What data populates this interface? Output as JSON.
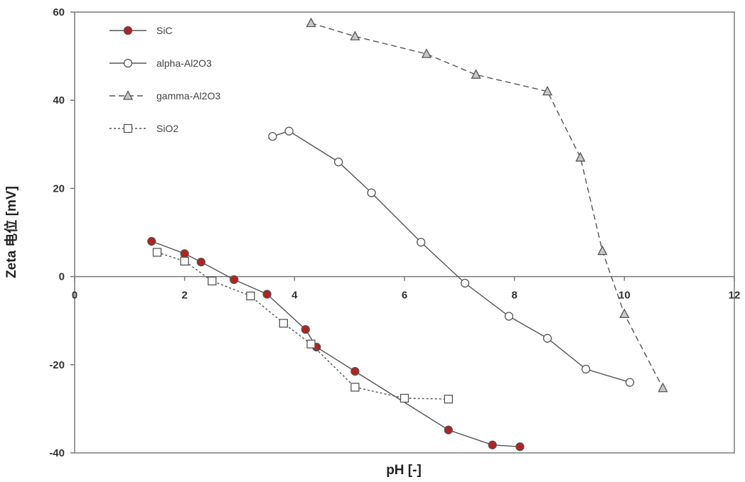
{
  "chart_data": {
    "type": "scatter",
    "title": "",
    "xlabel": "pH [-]",
    "ylabel": "Zeta 电位 [mV]",
    "xlim": [
      0,
      12
    ],
    "ylim": [
      -40,
      60
    ],
    "xticks": [
      0,
      2,
      4,
      6,
      8,
      10,
      12
    ],
    "yticks": [
      -40,
      -20,
      0,
      20,
      40,
      60
    ],
    "grid": false,
    "legend_position": "top-left",
    "series": [
      {
        "name": "SiC",
        "line_style": "solid",
        "marker": "circle",
        "marker_fill": "#b22222",
        "color": "#555555",
        "x": [
          1.4,
          2.0,
          2.3,
          2.9,
          3.5,
          4.2,
          4.4,
          5.1,
          6.8,
          7.6,
          8.1
        ],
        "y": [
          8,
          5.2,
          3.3,
          -0.7,
          -4,
          -12,
          -16,
          -21.5,
          -34.8,
          -38.2,
          -38.6
        ]
      },
      {
        "name": "alpha-Al2O3",
        "line_style": "solid",
        "marker": "circle",
        "marker_fill": "#ffffff",
        "color": "#555555",
        "x": [
          3.6,
          3.9,
          4.8,
          5.4,
          6.3,
          7.1,
          7.9,
          8.6,
          9.3,
          10.1
        ],
        "y": [
          31.8,
          33,
          26,
          19,
          7.8,
          -1.5,
          -9,
          -14,
          -21,
          -24
        ]
      },
      {
        "name": "gamma-Al2O3",
        "line_style": "dashed",
        "marker": "triangle",
        "marker_fill": "#c8c8c8",
        "color": "#555555",
        "x": [
          4.3,
          5.1,
          6.4,
          7.3,
          8.6,
          9.2,
          9.6,
          10.0,
          10.7
        ],
        "y": [
          57.5,
          54.5,
          50.5,
          45.8,
          42,
          27,
          5.8,
          -8.5,
          -25.3
        ]
      },
      {
        "name": "SiO2",
        "line_style": "dotted",
        "marker": "square",
        "marker_fill": "#ffffff",
        "color": "#555555",
        "x": [
          1.5,
          2.0,
          2.5,
          3.2,
          3.8,
          4.3,
          5.1,
          6.0,
          6.8
        ],
        "y": [
          5.5,
          3.5,
          -1,
          -4.4,
          -10.6,
          -15.3,
          -25.1,
          -27.6,
          -27.8
        ]
      }
    ]
  }
}
